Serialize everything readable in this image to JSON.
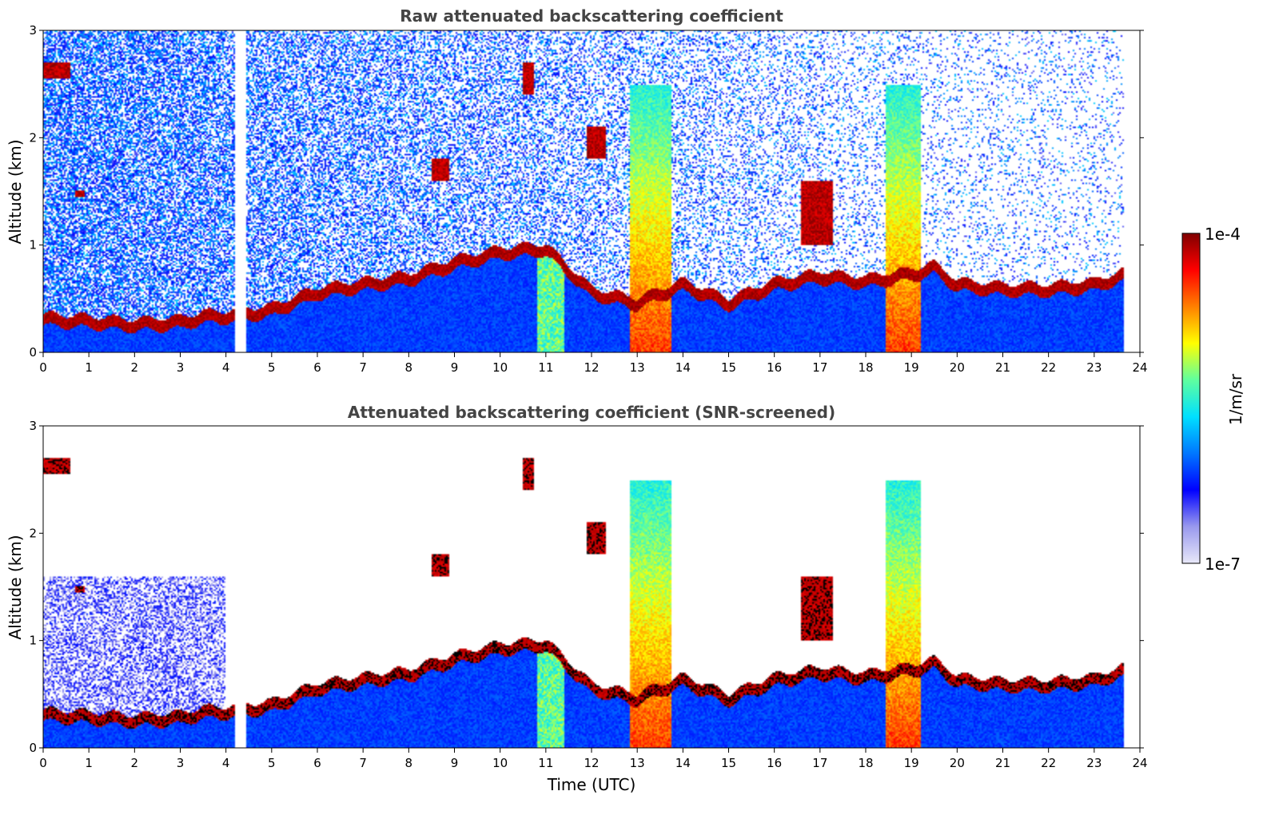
{
  "chart_data": [
    {
      "type": "heatmap",
      "title": "Raw attenuated backscattering coefficient",
      "xlabel": "",
      "ylabel": "Altitude (km)",
      "xlim": [
        0,
        24
      ],
      "ylim": [
        0,
        3
      ],
      "xticks": [
        "0",
        "1",
        "2",
        "3",
        "4",
        "5",
        "6",
        "7",
        "8",
        "9",
        "10",
        "11",
        "12",
        "13",
        "14",
        "15",
        "16",
        "17",
        "18",
        "19",
        "20",
        "21",
        "22",
        "23",
        "24"
      ],
      "yticks": [
        "0",
        "1",
        "2",
        "3"
      ],
      "grid": false,
      "screening": "raw",
      "data_end_hour": 23.65,
      "data_gap_hours": [
        4.2,
        4.45
      ],
      "boundary_layer_top_km": [
        [
          0,
          0.3
        ],
        [
          1,
          0.28
        ],
        [
          2,
          0.25
        ],
        [
          3,
          0.27
        ],
        [
          3.5,
          0.32
        ],
        [
          4,
          0.33
        ],
        [
          5,
          0.38
        ],
        [
          6,
          0.55
        ],
        [
          7,
          0.62
        ],
        [
          8,
          0.68
        ],
        [
          9,
          0.82
        ],
        [
          10,
          0.92
        ],
        [
          11,
          0.96
        ],
        [
          12,
          0.55
        ],
        [
          13,
          0.45
        ],
        [
          14,
          0.62
        ],
        [
          15,
          0.45
        ],
        [
          16,
          0.62
        ],
        [
          17,
          0.7
        ],
        [
          18,
          0.65
        ],
        [
          19,
          0.72
        ],
        [
          19.5,
          0.78
        ],
        [
          20,
          0.62
        ],
        [
          21,
          0.58
        ],
        [
          22,
          0.58
        ],
        [
          23,
          0.62
        ],
        [
          23.6,
          0.7
        ]
      ],
      "cloud_layers": [
        {
          "x0": 0.0,
          "x1": 0.6,
          "ymin_km": 2.55,
          "ymax_km": 2.7
        },
        {
          "x0": 0.7,
          "x1": 0.9,
          "ymin_km": 1.45,
          "ymax_km": 1.5
        },
        {
          "x0": 8.5,
          "x1": 8.9,
          "ymin_km": 1.6,
          "ymax_km": 1.8
        },
        {
          "x0": 10.5,
          "x1": 10.75,
          "ymin_km": 2.4,
          "ymax_km": 2.7
        },
        {
          "x0": 11.9,
          "x1": 12.3,
          "ymin_km": 1.8,
          "ymax_km": 2.1
        },
        {
          "x0": 16.6,
          "x1": 17.3,
          "ymin_km": 1.0,
          "ymax_km": 1.6
        }
      ],
      "precipitation_bands": [
        {
          "x0": 12.85,
          "x1": 13.75
        },
        {
          "x0": 18.45,
          "x1": 19.2
        }
      ]
    },
    {
      "type": "heatmap",
      "title": "Attenuated backscattering coefficient (SNR-screened)",
      "xlabel": "Time (UTC)",
      "ylabel": "Altitude (km)",
      "xlim": [
        0,
        24
      ],
      "ylim": [
        0,
        3
      ],
      "xticks": [
        "0",
        "1",
        "2",
        "3",
        "4",
        "5",
        "6",
        "7",
        "8",
        "9",
        "10",
        "11",
        "12",
        "13",
        "14",
        "15",
        "16",
        "17",
        "18",
        "19",
        "20",
        "21",
        "22",
        "23",
        "24"
      ],
      "yticks": [
        "0",
        "1",
        "2",
        "3"
      ],
      "grid": false,
      "screening": "snr",
      "data_end_hour": 23.65,
      "data_gap_hours": [
        4.2,
        4.45
      ]
    }
  ],
  "colorbar": {
    "label": "1/m/sr",
    "max_label": "1e-4",
    "min_label": "1e-7",
    "scale": "log",
    "colormap": [
      "#e8e8f8",
      "#9999ee",
      "#0000ff",
      "#0077ff",
      "#00e0ff",
      "#5fff9f",
      "#ffff00",
      "#ff8000",
      "#ff0000",
      "#800000"
    ]
  }
}
